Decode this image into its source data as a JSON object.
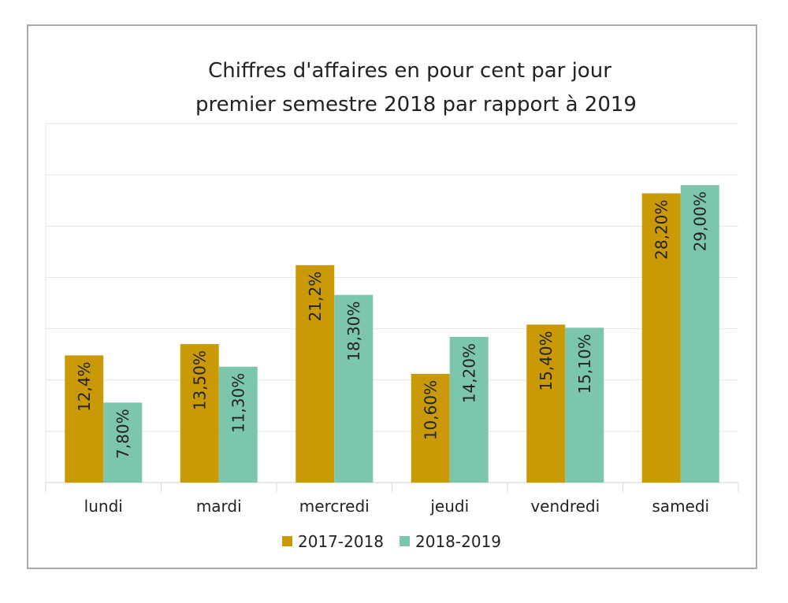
{
  "chart_data": {
    "type": "bar",
    "title": [
      "Chiffres d'affaires en pour cent par jour",
      "premier semestre 2018 par rapport à 2019"
    ],
    "categories": [
      "lundi",
      "mardi",
      "mercredi",
      "jeudi",
      "vendredi",
      "samedi"
    ],
    "series": [
      {
        "name": "2017-2018",
        "color": "#C99A06",
        "values": [
          12.4,
          13.5,
          21.2,
          10.6,
          15.4,
          28.2
        ],
        "labels": [
          "12,4%",
          "13,50%",
          "21,2%",
          "10,60%",
          "15,40%",
          "28,20%"
        ]
      },
      {
        "name": "2018-2019",
        "color": "#7DC6AE",
        "values": [
          7.8,
          11.3,
          18.3,
          14.2,
          15.1,
          29.0
        ],
        "labels": [
          "7,80%",
          "11,30%",
          "18,30%",
          "14,20%",
          "15,10%",
          "29,00%"
        ]
      }
    ],
    "ylim": [
      0,
      35
    ],
    "ytick_step": 5,
    "y_axis_visible": false,
    "grid": true,
    "legend": "bottom",
    "xlabel": "",
    "ylabel": ""
  }
}
